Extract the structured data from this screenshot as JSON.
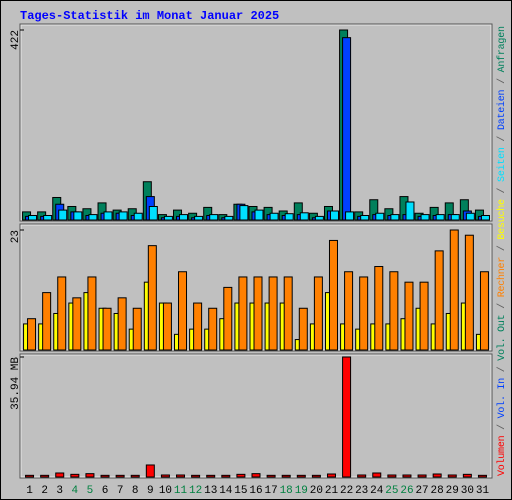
{
  "chart_data": [
    {
      "type": "bar",
      "title": "Tages-Statistik im Monat Januar 2025",
      "categories": [
        "1",
        "2",
        "3",
        "4",
        "5",
        "6",
        "7",
        "8",
        "9",
        "10",
        "11",
        "12",
        "13",
        "14",
        "15",
        "16",
        "17",
        "18",
        "19",
        "20",
        "21",
        "22",
        "23",
        "24",
        "25",
        "26",
        "27",
        "28",
        "29",
        "30",
        "31"
      ],
      "category_colors": [
        "#000000",
        "#000000",
        "#000000",
        "#008040",
        "#008040",
        "#000000",
        "#000000",
        "#000000",
        "#000000",
        "#000000",
        "#008040",
        "#008040",
        "#000000",
        "#000000",
        "#000000",
        "#000000",
        "#000000",
        "#008040",
        "#008040",
        "#000000",
        "#000000",
        "#000000",
        "#000000",
        "#000000",
        "#008040",
        "#008040",
        "#000000",
        "#000000",
        "#000000",
        "#000000",
        "#000000"
      ],
      "legend_separator": " / ",
      "legend": [
        {
          "name": "Volumen",
          "color": "#ff0000"
        },
        {
          "name": "Vol. In",
          "color": "#0040ff"
        },
        {
          "name": "Vol. Out",
          "color": "#00805c"
        },
        {
          "name": "Rechner",
          "color": "#ff8000"
        },
        {
          "name": "Besuche",
          "color": "#ffff00"
        },
        {
          "name": "Seiten",
          "color": "#00e0ff"
        },
        {
          "name": "Dateien",
          "color": "#0040ff"
        },
        {
          "name": "Anfragen",
          "color": "#00805c"
        }
      ],
      "ylim": [
        0,
        422
      ],
      "yticks": [
        422
      ],
      "series": [
        {
          "color": "#00805c",
          "values": [
            18,
            18,
            50,
            30,
            25,
            38,
            22,
            25,
            85,
            12,
            22,
            15,
            28,
            12,
            35,
            30,
            28,
            20,
            38,
            15,
            30,
            422,
            18,
            45,
            25,
            52,
            15,
            28,
            38,
            45,
            22
          ]
        },
        {
          "color": "#0040ff",
          "values": [
            8,
            8,
            35,
            18,
            10,
            15,
            15,
            10,
            52,
            5,
            8,
            5,
            10,
            5,
            35,
            18,
            12,
            10,
            12,
            5,
            20,
            405,
            8,
            12,
            10,
            12,
            8,
            10,
            12,
            20,
            8
          ]
        },
        {
          "color": "#00e0ff",
          "values": [
            10,
            10,
            22,
            18,
            12,
            18,
            18,
            15,
            30,
            8,
            12,
            8,
            12,
            8,
            32,
            22,
            15,
            14,
            16,
            8,
            20,
            18,
            10,
            15,
            12,
            40,
            12,
            12,
            12,
            15,
            10
          ]
        }
      ]
    },
    {
      "type": "bar",
      "ylim": [
        0,
        23
      ],
      "yticks": [
        23
      ],
      "series": [
        {
          "color": "#ffff00",
          "values": [
            5,
            5,
            7,
            9,
            11,
            8,
            7,
            4,
            13,
            9,
            3,
            4,
            4,
            6,
            9,
            9,
            9,
            9,
            2,
            5,
            11,
            5,
            4,
            5,
            5,
            6,
            8,
            5,
            7,
            9,
            3
          ]
        },
        {
          "color": "#ff8000",
          "values": [
            6,
            11,
            14,
            10,
            14,
            8,
            10,
            8,
            20,
            9,
            15,
            9,
            8,
            12,
            14,
            14,
            14,
            14,
            8,
            14,
            21,
            15,
            14,
            16,
            15,
            13,
            13,
            19,
            23,
            22,
            15
          ]
        }
      ]
    },
    {
      "type": "bar",
      "ylim": [
        0,
        35.94
      ],
      "yticks": [
        {
          "value": 35.94,
          "label": "35.94 MB"
        }
      ],
      "series": [
        {
          "color": "#ff0000",
          "values": [
            0.5,
            0.5,
            1.2,
            0.8,
            1.0,
            0.5,
            0.5,
            0.5,
            3.6,
            0.6,
            0.6,
            0.5,
            0.5,
            0.5,
            0.8,
            1.0,
            0.5,
            0.5,
            0.5,
            0.5,
            0.9,
            35.94,
            0.6,
            1.2,
            0.6,
            0.6,
            0.6,
            0.9,
            0.6,
            0.8,
            0.5
          ]
        }
      ]
    }
  ]
}
